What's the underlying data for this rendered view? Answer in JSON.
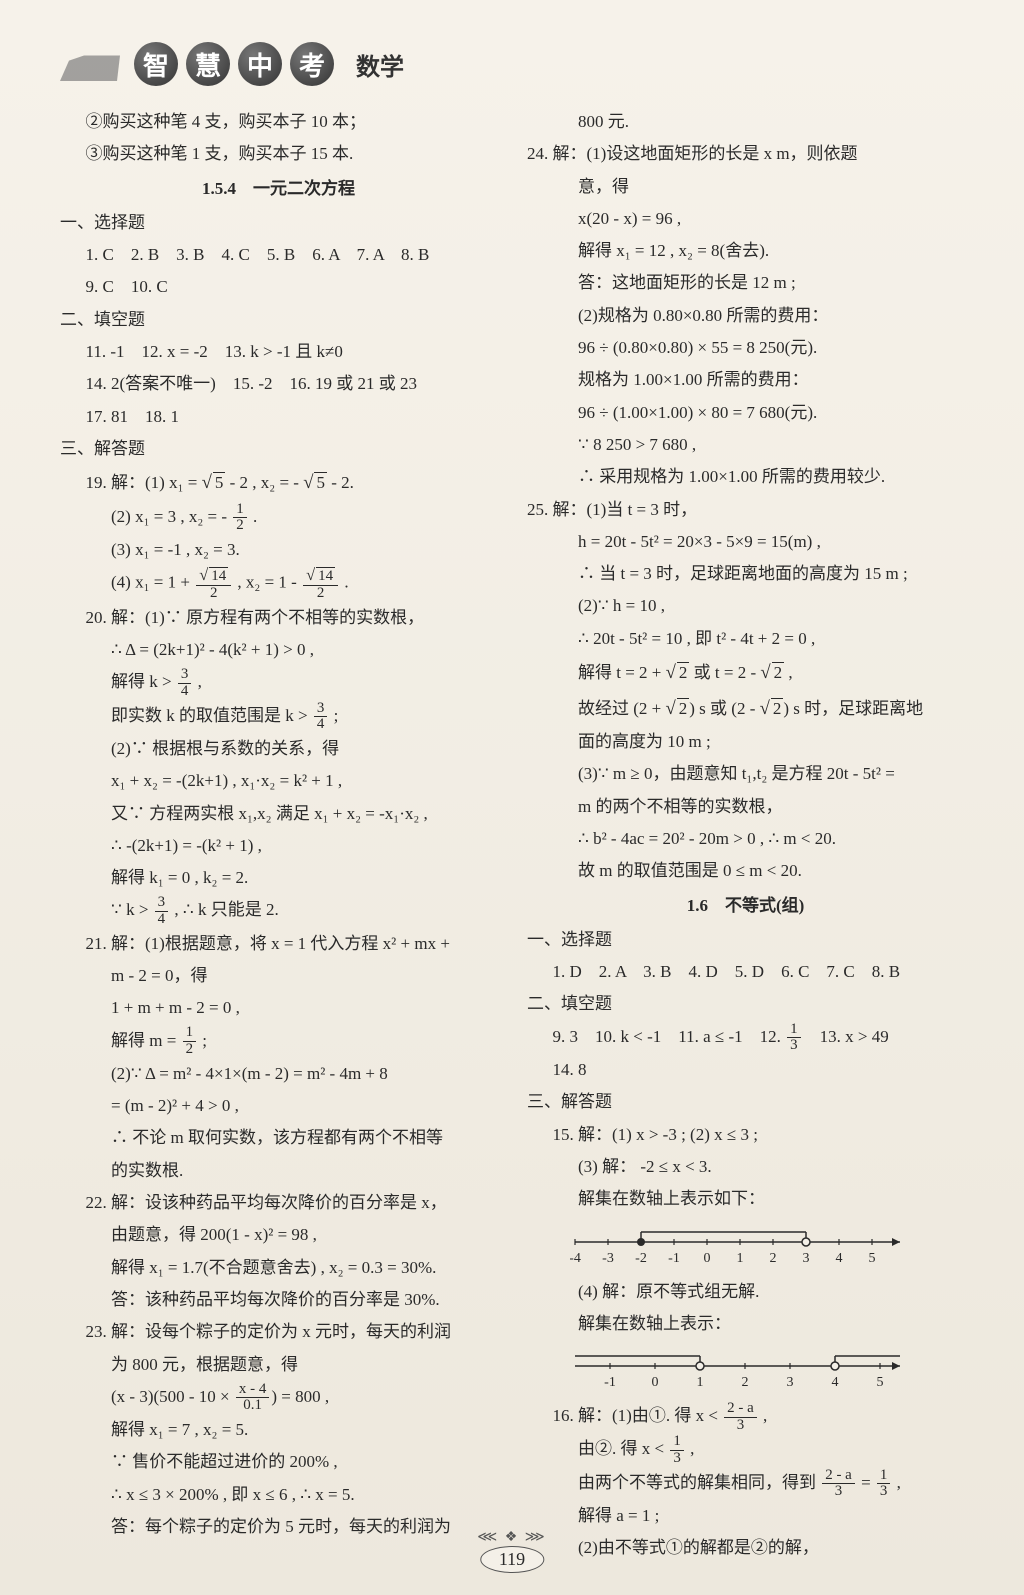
{
  "header": {
    "chars": [
      "智",
      "慧",
      "中",
      "考"
    ],
    "subject": "数学"
  },
  "pageNumber": "119",
  "leftCol": {
    "intro": [
      "②购买这种笔 4 支，购买本子 10 本；",
      "③购买这种笔 1 支，购买本子 15 本."
    ],
    "sec154": {
      "title": "1.5.4　一元二次方程",
      "c1": "一、选择题",
      "mc": [
        "1. C　2. B　3. B　4. C　5. B　6. A　7. A　8. B",
        "9. C　10. C"
      ],
      "c2": "二、填空题",
      "fill": [
        "11. -1　12. x = -2　13. k > -1 且 k≠0",
        "14. 2(答案不唯一)　15. -2　16. 19 或 21 或 23",
        "17. 81　18. 1"
      ],
      "c3": "三、解答题",
      "q19_1_pre": "19. 解：(1) x₁ = ",
      "q19_1_a": "5",
      "q19_1_mid": " - 2 , x₂ = - ",
      "q19_1_b": "5",
      "q19_1_post": " - 2.",
      "q19_2_pre": "(2) x₁ = 3 , x₂ = - ",
      "q19_2_num": "1",
      "q19_2_den": "2",
      "q19_2_post": " .",
      "q19_3": "(3) x₁ = -1 , x₂ = 3.",
      "q19_4_pre": "(4) x₁ = 1 + ",
      "q19_4_num1": "14",
      "q19_4_den": "2",
      "q19_4_mid": " , x₂ = 1 - ",
      "q19_4_num2": "14",
      "q19_4_post": " .",
      "q20_1": "20. 解：(1)∵ 原方程有两个不相等的实数根，",
      "q20_2": "∴ Δ = (2k+1)² - 4(k² + 1) > 0 ,",
      "q20_3_pre": "解得 k > ",
      "q20_3_num": "3",
      "q20_3_den": "4",
      "q20_3_post": " ,",
      "q20_4_pre": "即实数 k 的取值范围是 k > ",
      "q20_4_post": " ;",
      "q20_5": "(2)∵ 根据根与系数的关系，得",
      "q20_6": "x₁ + x₂ = -(2k+1) , x₁·x₂ = k² + 1 ,",
      "q20_7": "又∵ 方程两实根 x₁,x₂ 满足 x₁ + x₂ = -x₁·x₂ ,",
      "q20_8": "∴ -(2k+1) = -(k² + 1) ,",
      "q20_9": "解得 k₁ = 0 , k₂ = 2.",
      "q20_10_pre": "∵ k > ",
      "q20_10_post": " , ∴ k 只能是 2.",
      "q21_1": "21. 解：(1)根据题意，将 x = 1 代入方程 x² + mx +",
      "q21_2": "m - 2 = 0，得",
      "q21_3": "1 + m + m - 2 = 0 ,",
      "q21_4_pre": "解得 m = ",
      "q21_4_num": "1",
      "q21_4_den": "2",
      "q21_4_post": " ;",
      "q21_5": "(2)∵ Δ = m² - 4×1×(m - 2) = m² - 4m + 8",
      "q21_6": "= (m - 2)² + 4 > 0 ,",
      "q21_7": "∴ 不论 m 取何实数，该方程都有两个不相等",
      "q21_8": "的实数根.",
      "q22_1": "22. 解：设该种药品平均每次降价的百分率是 x，",
      "q22_2": "由题意，得 200(1 - x)² = 98 ,",
      "q22_3": "解得 x₁ = 1.7(不合题意舍去) , x₂ = 0.3 = 30%.",
      "q22_4": "答：该种药品平均每次降价的百分率是 30%.",
      "q23_1": "23. 解：设每个粽子的定价为 x 元时，每天的利润",
      "q23_2": "为 800 元，根据题意，得",
      "q23_3_pre": "(x - 3)(500 - 10 × ",
      "q23_3_num": "x - 4",
      "q23_3_den": "0.1",
      "q23_3_post": ") = 800 ,",
      "q23_4": "解得 x₁ = 7 , x₂ = 5.",
      "q23_5": "∵ 售价不能超过进价的 200% ,",
      "q23_6": "∴ x ≤ 3 × 200% , 即 x ≤ 6 , ∴ x = 5.",
      "q23_7": "答：每个粽子的定价为 5 元时，每天的利润为"
    }
  },
  "rightCol": {
    "q23_8": "800 元.",
    "q24_1": "24. 解：(1)设这地面矩形的长是 x m，则依题",
    "q24_2": "意，得",
    "q24_3": "x(20 - x) = 96 ,",
    "q24_4": "解得 x₁ = 12 , x₂ = 8(舍去).",
    "q24_5": "答：这地面矩形的长是 12 m ;",
    "q24_6": "(2)规格为 0.80×0.80 所需的费用：",
    "q24_7": "96 ÷ (0.80×0.80) × 55 = 8 250(元).",
    "q24_8": "规格为 1.00×1.00 所需的费用：",
    "q24_9": "96 ÷ (1.00×1.00) × 80 = 7 680(元).",
    "q24_10": "∵ 8 250 > 7 680 ,",
    "q24_11": "∴ 采用规格为 1.00×1.00 所需的费用较少.",
    "q25_1": "25. 解：(1)当 t = 3 时，",
    "q25_2": "h = 20t - 5t² = 20×3 - 5×9 = 15(m) ,",
    "q25_3": "∴ 当 t = 3 时，足球距离地面的高度为 15 m ;",
    "q25_4": "(2)∵ h = 10 ,",
    "q25_5": "∴ 20t - 5t² = 10 , 即 t² - 4t + 2 = 0 ,",
    "q25_6_pre": "解得 t = 2 + ",
    "q25_6_a": "2",
    "q25_6_mid": " 或 t = 2 - ",
    "q25_6_post": " ,",
    "q25_7_pre": "故经过 (2 + ",
    "q25_7_mid": ") s 或 (2 - ",
    "q25_7_post": ") s 时，足球距离地",
    "q25_8": "面的高度为 10 m ;",
    "q25_9": "(3)∵ m ≥ 0，由题意知 t₁,t₂ 是方程 20t - 5t² =",
    "q25_10": "m 的两个不相等的实数根，",
    "q25_11": "∴ b² - 4ac = 20² - 20m > 0 , ∴ m < 20.",
    "q25_12": "故 m 的取值范围是 0 ≤ m < 20.",
    "sec16": {
      "title": "1.6　不等式(组)",
      "c1": "一、选择题",
      "mc": "1. D　2. A　3. B　4. D　5. D　6. C　7. C　8. B",
      "c2": "二、填空题",
      "fill1_pre": "9. 3　10. k < -1　11. a ≤ -1　12. ",
      "fill1_num": "1",
      "fill1_den": "3",
      "fill1_post": "　13. x > 49",
      "fill2": "14. 8",
      "c3": "三、解答题",
      "q15_1": "15. 解：(1) x > -3 ; (2) x ≤ 3 ;",
      "q15_2": "(3) 解： -2 ≤ x < 3.",
      "q15_3": "解集在数轴上表示如下：",
      "nl1": {
        "ticks": [
          "-4",
          "-3",
          "-2",
          "-1",
          "0",
          "1",
          "2",
          "3",
          "4",
          "5"
        ],
        "closed": -2,
        "open": 3
      },
      "q15_4": "(4) 解：原不等式组无解.",
      "q15_5": "解集在数轴上表示：",
      "nl2": {
        "ticks": [
          "-1",
          "0",
          "1",
          "2",
          "3",
          "4",
          "5"
        ],
        "leftOpen": 1,
        "rightOpen": 4
      },
      "q16_1_pre": "16. 解：(1)由①. 得 x < ",
      "q16_1_num": "2 - a",
      "q16_1_den": "3",
      "q16_1_post": " ,",
      "q16_2_pre": "由②. 得 x < ",
      "q16_2_num": "1",
      "q16_2_den": "3",
      "q16_2_post": " ,",
      "q16_3_pre": "由两个不等式的解集相同，得到 ",
      "q16_3_num1": "2 - a",
      "q16_3_den": "3",
      "q16_3_mid": " = ",
      "q16_3_num2": "1",
      "q16_3_post": " ,",
      "q16_4": "解得 a = 1 ;",
      "q16_5": "(2)由不等式①的解都是②的解，"
    }
  }
}
